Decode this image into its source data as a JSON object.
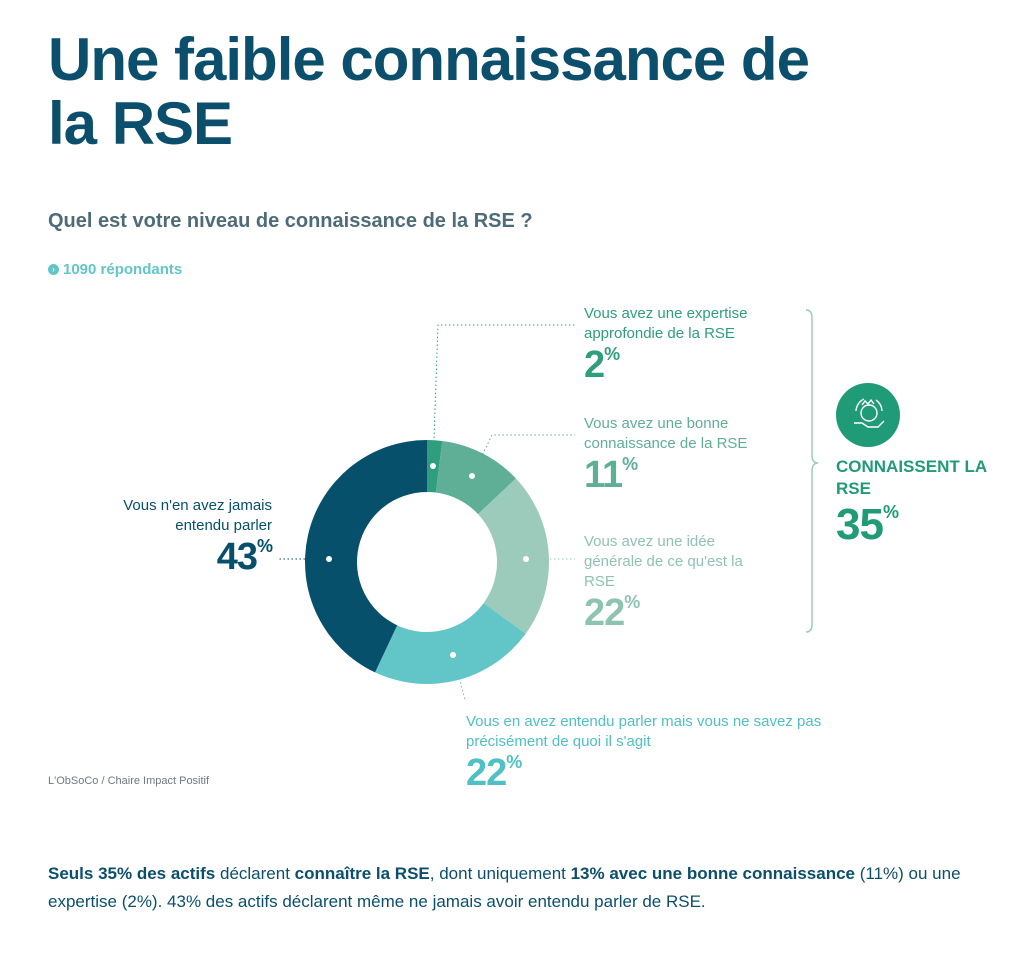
{
  "title": "Une faible connaissance de la RSE",
  "question": "Quel est votre niveau de connaissance de la RSE ?",
  "respondents": "1090 répondants",
  "respondents_icon": "chevron-right-circle-icon",
  "source": "L'ObSoCo / Chaire Impact Positif",
  "summary": {
    "label": "CONNAISSENT LA RSE",
    "value": "35",
    "icon": "hand-globe-icon",
    "color": "#1f9b78"
  },
  "chart_data": {
    "type": "pie",
    "donut": true,
    "title": "Quel est votre niveau de connaissance de la RSE ?",
    "slices": [
      {
        "label": "Vous avez une expertise approfondie de la RSE",
        "value": 2,
        "color": "#2e9e7e"
      },
      {
        "label": "Vous avez une bonne connaissance de la RSE",
        "value": 11,
        "color": "#5fae96"
      },
      {
        "label": "Vous avez une idée générale de ce qu'est la RSE",
        "value": 22,
        "color": "#9ccbbb"
      },
      {
        "label": "Vous en avez entendu parler mais vous ne savez pas précisément de quoi il s'agit",
        "value": 22,
        "color": "#62c6c8"
      },
      {
        "label": "Vous n'en avez jamais entendu parler",
        "value": 43,
        "color": "#07506c"
      }
    ]
  },
  "footer": {
    "p1": "Seuls 35% des actifs",
    "p2": " déclarent ",
    "p3": "connaître la RSE",
    "p4": ", dont uniquement ",
    "p5": "13% avec une bonne connaissance",
    "p6": " (11%) ou une expertise (2%). 43% des actifs déclarent même ne jamais avoir entendu parler de RSE."
  }
}
